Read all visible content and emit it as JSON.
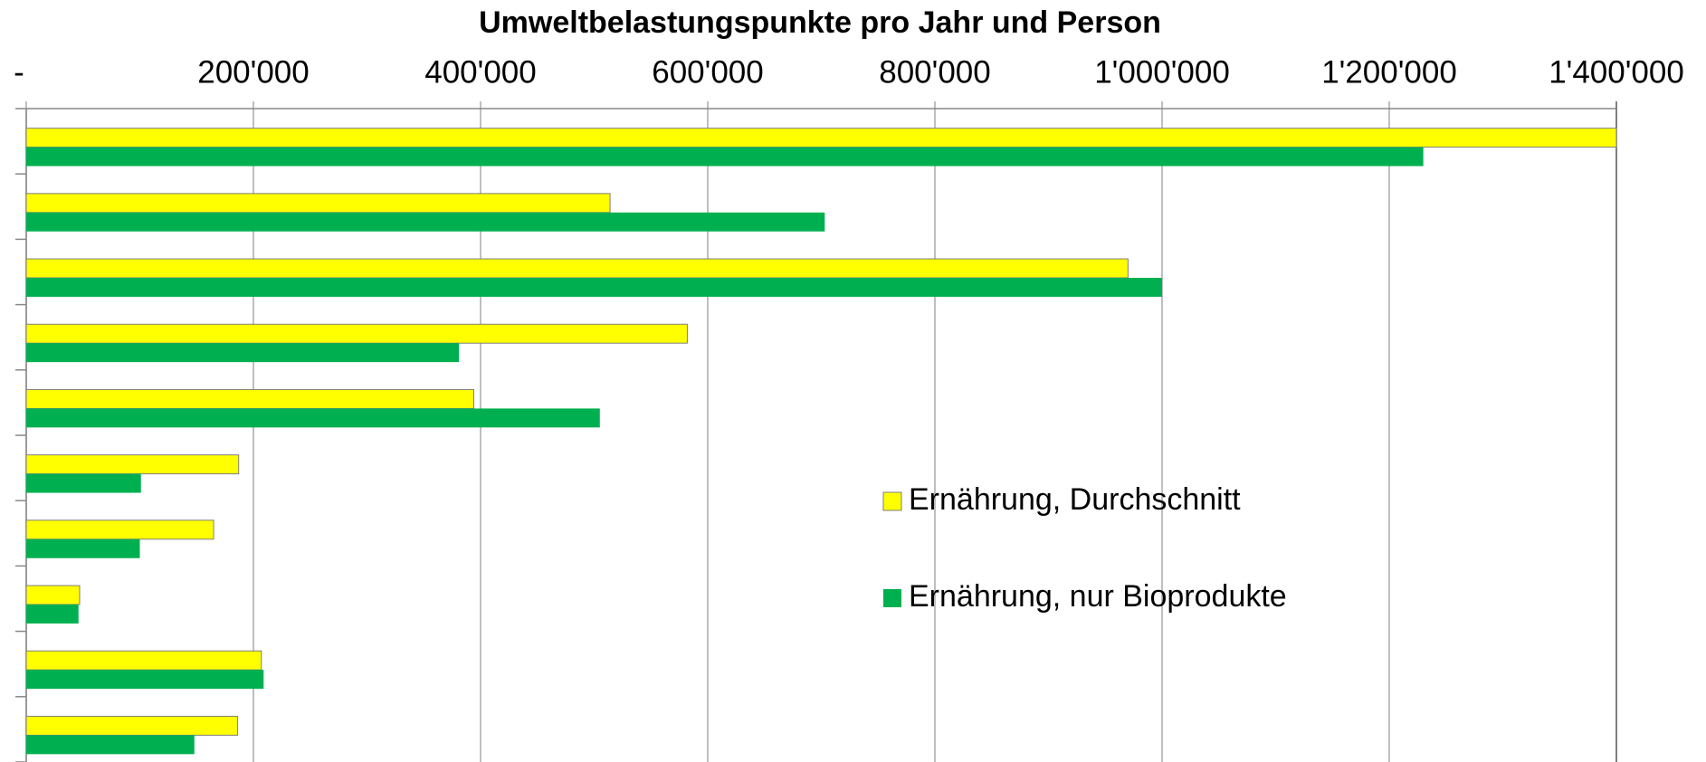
{
  "chart_data": {
    "type": "barh",
    "title": "Umweltbelastungspunkte  pro Jahr und Person",
    "categories": [
      null,
      null,
      null,
      null,
      null,
      null,
      null,
      null,
      null,
      null
    ],
    "series": [
      {
        "name": "Ernährung, Durchschnitt",
        "color": "#ffff00",
        "values": [
          1400000,
          514000,
          970000,
          582000,
          394000,
          187000,
          165000,
          47000,
          207000,
          186000
        ]
      },
      {
        "name": "Ernährung, nur Bioprodukte",
        "color": "#00b050",
        "values": [
          1230000,
          703000,
          1000000,
          381000,
          505000,
          101000,
          100000,
          46000,
          209000,
          148000
        ]
      }
    ],
    "xlim": [
      0,
      1400000
    ],
    "xticks": [
      {
        "value": 0,
        "label": "-"
      },
      {
        "value": 200000,
        "label": "200'000"
      },
      {
        "value": 400000,
        "label": "400'000"
      },
      {
        "value": 600000,
        "label": "600'000"
      },
      {
        "value": 800000,
        "label": "800'000"
      },
      {
        "value": 1000000,
        "label": "1'000'000"
      },
      {
        "value": 1200000,
        "label": "1'200'000"
      },
      {
        "value": 1400000,
        "label": "1'400'000"
      }
    ],
    "grid": true,
    "legend": "center-right"
  }
}
